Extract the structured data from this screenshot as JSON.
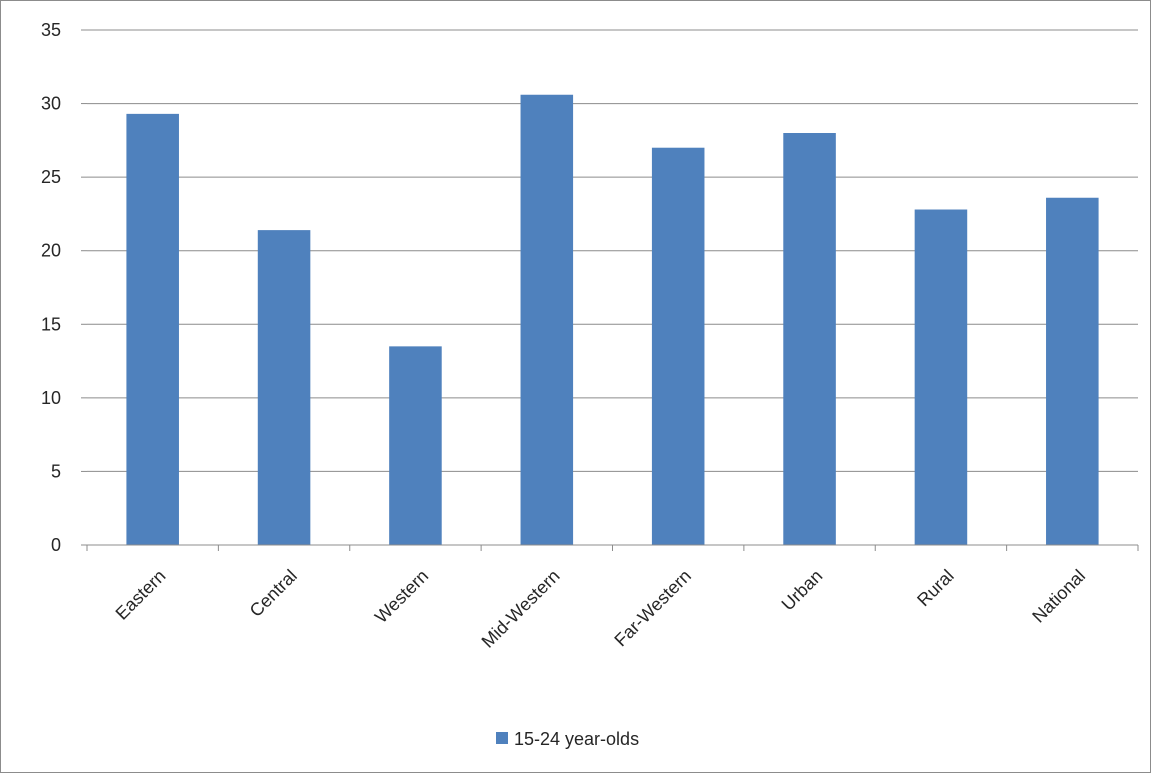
{
  "chart_data": {
    "type": "bar",
    "title": "",
    "xlabel": "",
    "ylabel": "",
    "categories": [
      "Eastern",
      "Central",
      "Western",
      "Mid-Western",
      "Far-Western",
      "Urban",
      "Rural",
      "National"
    ],
    "series": [
      {
        "name": "15-24 year-olds",
        "values": [
          29.3,
          21.4,
          13.5,
          30.6,
          27.0,
          28.0,
          22.8,
          23.6
        ],
        "color": "#4f81bd"
      }
    ],
    "ylim": [
      0,
      35
    ],
    "yticks": [
      "0",
      "5",
      "10",
      "15",
      "20",
      "25",
      "30",
      "35"
    ],
    "grid": true,
    "legend_position": "bottom",
    "colors": {
      "gridline": "#8c8c8c",
      "axis": "#8c8c8c",
      "border": "#8c8c8c"
    }
  }
}
